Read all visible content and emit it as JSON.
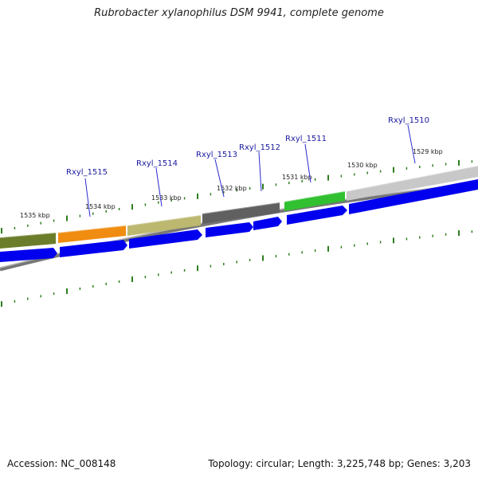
{
  "title": "Rubrobacter xylanophilus DSM 9941, complete genome",
  "accession": "Accession: NC_008148",
  "topology": "Topology: circular; Length: 3,225,748 bp; Genes: 3,203",
  "colors": {
    "cds": "#0000ee",
    "tick": "#2e7d1f",
    "gene_label": "#1a1aa0",
    "backbone": "#888888"
  },
  "kbp_labels": [
    "1535 kbp",
    "1534 kbp",
    "1533 kbp",
    "1532 kbp",
    "1531 kbp",
    "1530 kbp",
    "1529 kbp"
  ],
  "gene_labels": [
    "Rxyl_1515",
    "Rxyl_1514",
    "Rxyl_1513",
    "Rxyl_1512",
    "Rxyl_1511",
    "Rxyl_1510"
  ],
  "feature_colors": [
    "#6b7d2a",
    "#f08c10",
    "#bdb870",
    "#606060",
    "#30c030",
    "#c8c8c8"
  ]
}
